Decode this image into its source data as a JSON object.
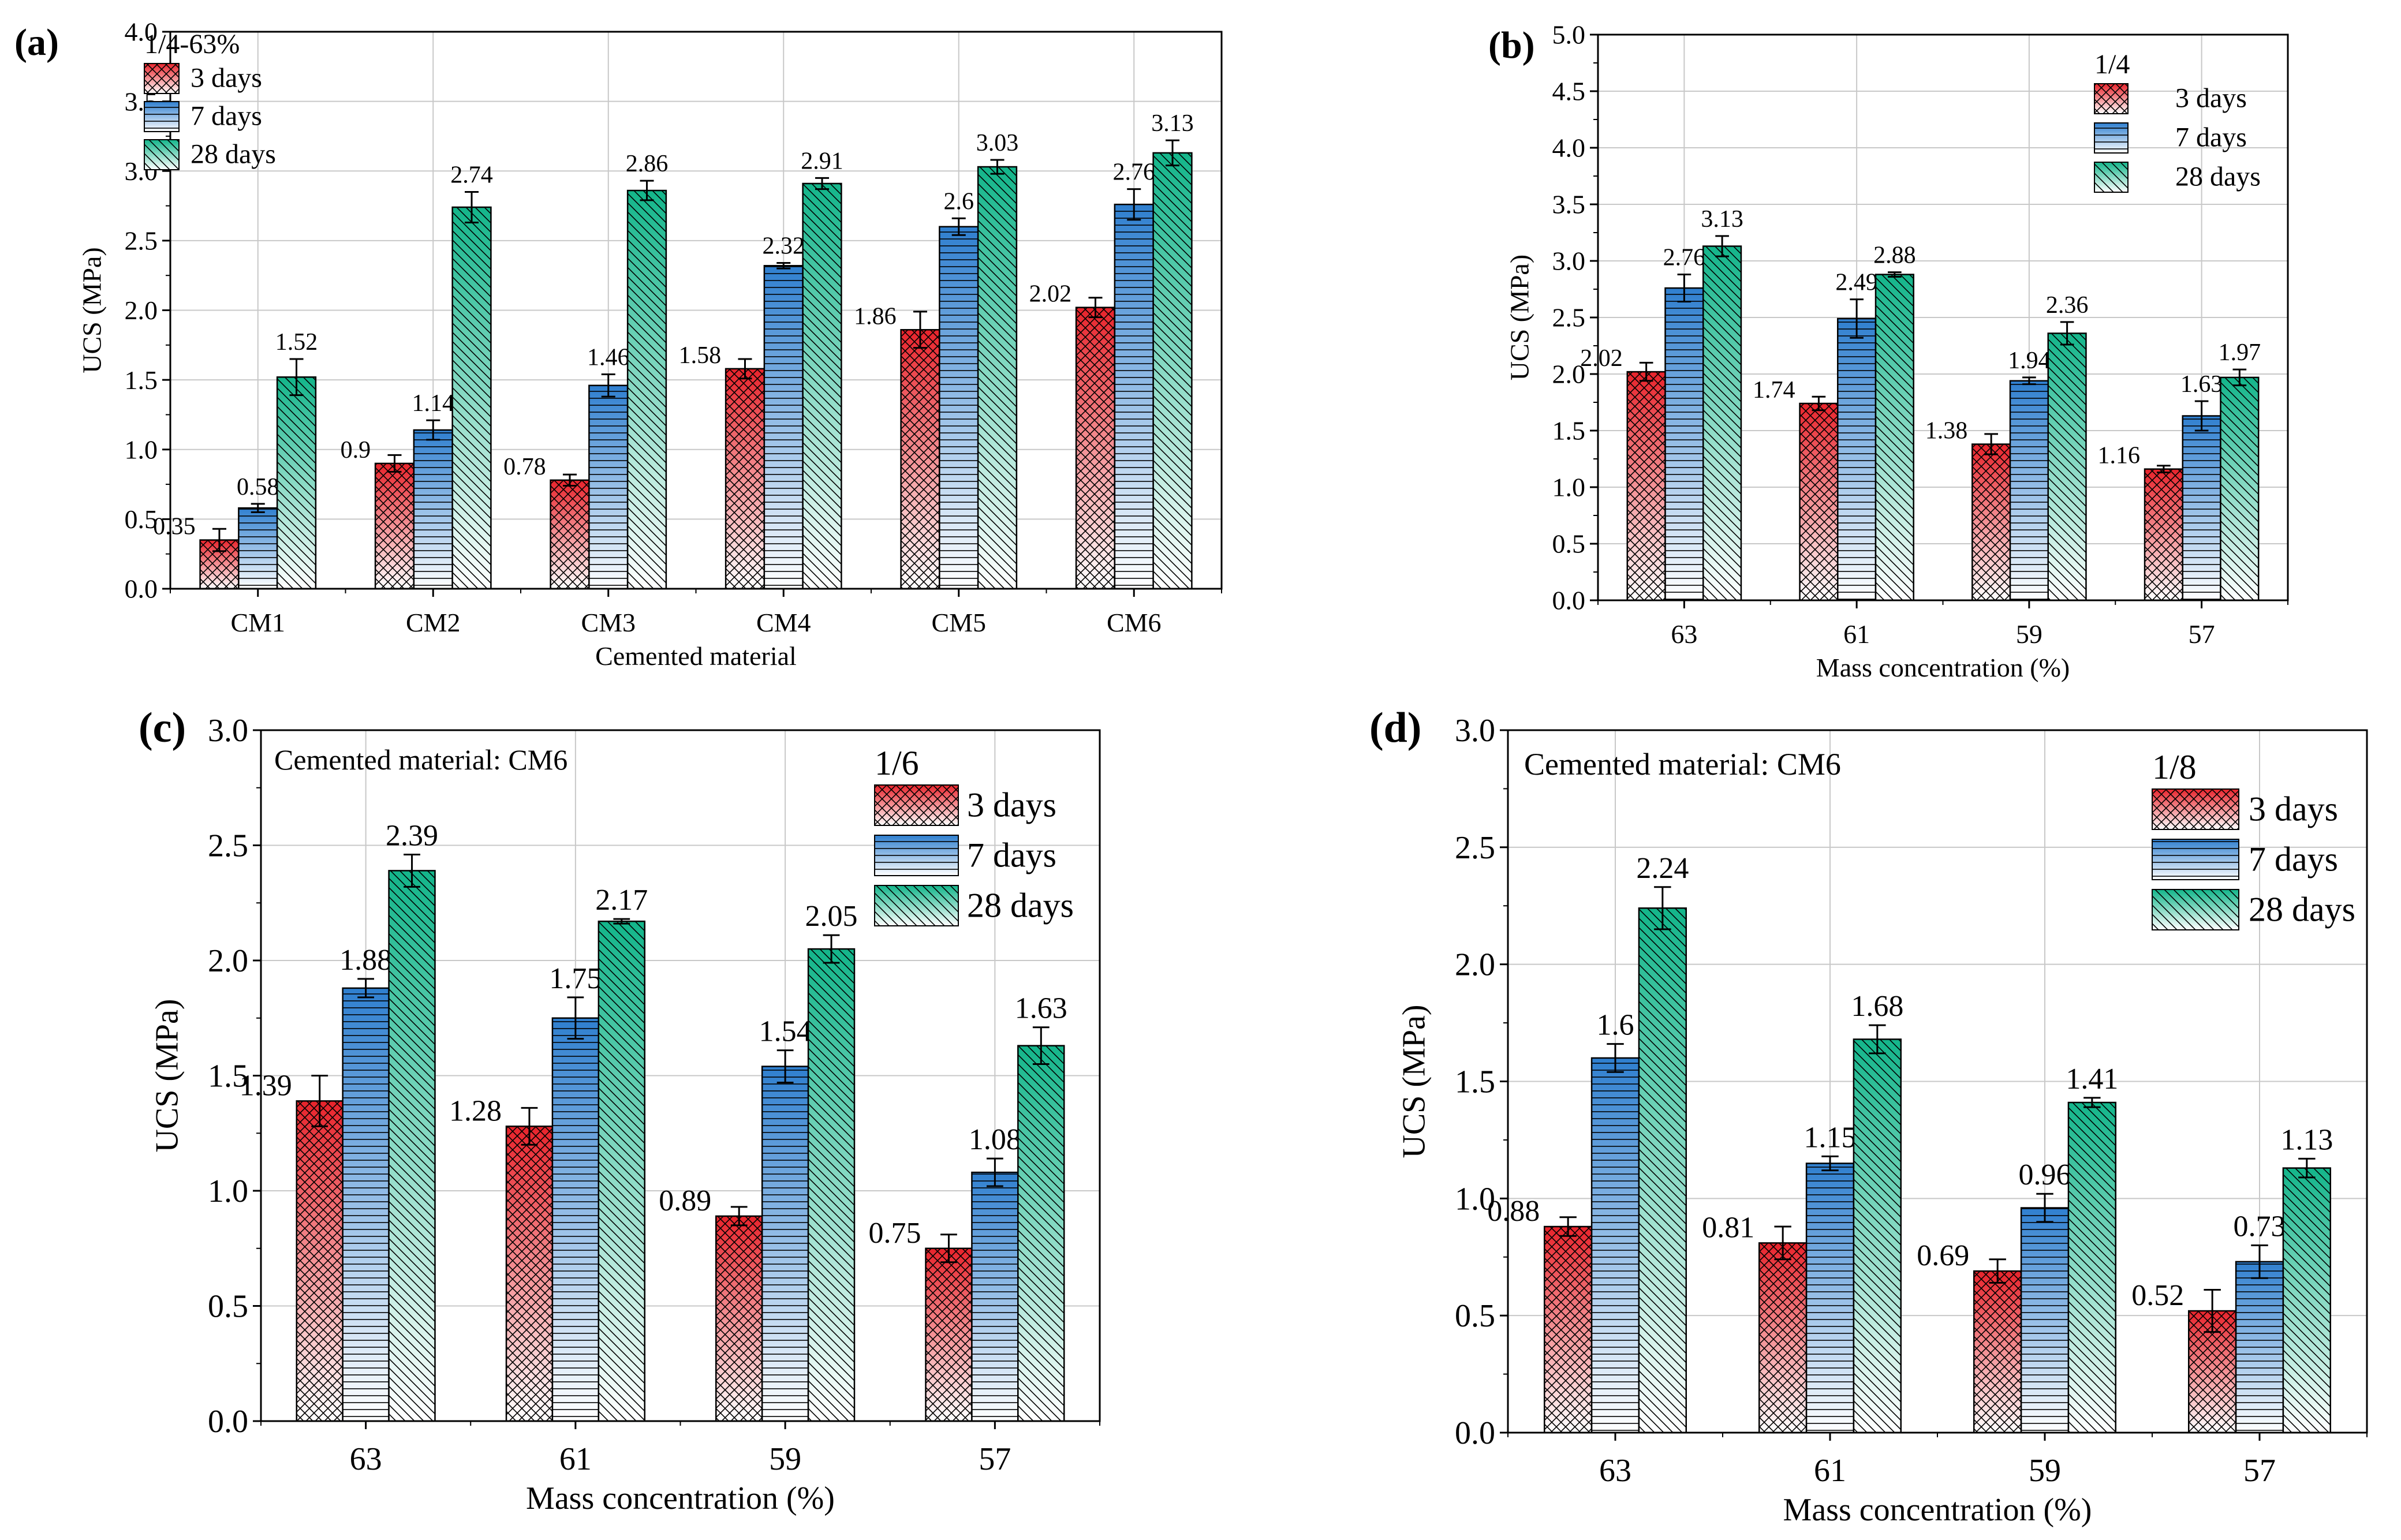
{
  "series_colors": {
    "3 days": "#e8232b",
    "7 days": "#2f7fcf",
    "28 days": "#13b58a"
  },
  "chart_data": [
    {
      "type": "bar",
      "panel_label": "(a)",
      "title": "",
      "xlabel": "Cemented material",
      "ylabel": "UCS (MPa)",
      "ylim": [
        0,
        4.0
      ],
      "yticks": [
        "0.0",
        "0.5",
        "1.0",
        "1.5",
        "2.0",
        "2.5",
        "3.0",
        "3.5",
        "4.0"
      ],
      "grid": true,
      "legend_title": "1/4-63%",
      "legend_position": "top-left",
      "categories": [
        "CM1",
        "CM2",
        "CM3",
        "CM4",
        "CM5",
        "CM6"
      ],
      "series": [
        {
          "name": "3 days",
          "values": [
            0.35,
            0.9,
            0.78,
            1.58,
            1.86,
            2.02
          ],
          "labels": [
            "0.35",
            "0.9",
            "0.78",
            "1.58",
            "1.86",
            "2.02"
          ],
          "errors": [
            0.08,
            0.06,
            0.04,
            0.07,
            0.13,
            0.07
          ]
        },
        {
          "name": "7 days",
          "values": [
            0.58,
            1.14,
            1.46,
            2.32,
            2.6,
            2.76
          ],
          "labels": [
            "0.58",
            "1.14",
            "1.46",
            "2.32",
            "2.6",
            "2.76"
          ],
          "errors": [
            0.03,
            0.07,
            0.08,
            0.02,
            0.06,
            0.11
          ]
        },
        {
          "name": "28 days",
          "values": [
            1.52,
            2.74,
            2.86,
            2.91,
            3.03,
            3.13
          ],
          "labels": [
            "1.52",
            "2.74",
            "2.86",
            "2.91",
            "3.03",
            "3.13"
          ],
          "errors": [
            0.13,
            0.11,
            0.07,
            0.04,
            0.05,
            0.09
          ]
        }
      ]
    },
    {
      "type": "bar",
      "panel_label": "(b)",
      "title": "",
      "xlabel": "Mass concentration (%)",
      "ylabel": "UCS (MPa)",
      "ylim": [
        0,
        5.0
      ],
      "yticks": [
        "0.0",
        "0.5",
        "1.0",
        "1.5",
        "2.0",
        "2.5",
        "3.0",
        "3.5",
        "4.0",
        "4.5",
        "5.0"
      ],
      "grid": true,
      "legend_title": "1/4",
      "legend_position": "top-right",
      "categories": [
        "63",
        "61",
        "59",
        "57"
      ],
      "series": [
        {
          "name": "3 days",
          "values": [
            2.02,
            1.74,
            1.38,
            1.16
          ],
          "labels": [
            "2.02",
            "1.74",
            "1.38",
            "1.16"
          ],
          "errors": [
            0.08,
            0.06,
            0.09,
            0.03
          ]
        },
        {
          "name": "7 days",
          "values": [
            2.76,
            2.49,
            1.94,
            1.63
          ],
          "labels": [
            "2.76",
            "2.49",
            "1.94",
            "1.63"
          ],
          "errors": [
            0.12,
            0.17,
            0.03,
            0.13
          ]
        },
        {
          "name": "28 days",
          "values": [
            3.13,
            2.88,
            2.36,
            1.97
          ],
          "labels": [
            "3.13",
            "2.88",
            "2.36",
            "1.97"
          ],
          "errors": [
            0.09,
            0.02,
            0.1,
            0.07
          ]
        }
      ]
    },
    {
      "type": "bar",
      "panel_label": "(c)",
      "title": "",
      "annotation": "Cemented material: CM6",
      "xlabel": "Mass concentration (%)",
      "ylabel": "UCS (MPa)",
      "ylim": [
        0,
        3.0
      ],
      "yticks": [
        "0.0",
        "0.5",
        "1.0",
        "1.5",
        "2.0",
        "2.5",
        "3.0"
      ],
      "grid": true,
      "legend_title": "1/6",
      "legend_position": "top-right",
      "categories": [
        "63",
        "61",
        "59",
        "57"
      ],
      "series": [
        {
          "name": "3 days",
          "values": [
            1.39,
            1.28,
            0.89,
            0.75
          ],
          "labels": [
            "1.39",
            "1.28",
            "0.89",
            "0.75"
          ],
          "errors": [
            0.11,
            0.08,
            0.04,
            0.06
          ]
        },
        {
          "name": "7 days",
          "values": [
            1.88,
            1.75,
            1.54,
            1.08
          ],
          "labels": [
            "1.88",
            "1.75",
            "1.54",
            "1.08"
          ],
          "errors": [
            0.04,
            0.09,
            0.07,
            0.06
          ]
        },
        {
          "name": "28 days",
          "values": [
            2.39,
            2.17,
            2.05,
            1.63
          ],
          "labels": [
            "2.39",
            "2.17",
            "2.05",
            "1.63"
          ],
          "errors": [
            0.07,
            0.01,
            0.06,
            0.08
          ]
        }
      ]
    },
    {
      "type": "bar",
      "panel_label": "(d)",
      "title": "",
      "annotation": "Cemented material: CM6",
      "xlabel": "Mass concentration (%)",
      "ylabel": "UCS (MPa)",
      "ylim": [
        0,
        3.0
      ],
      "yticks": [
        "0.0",
        "0.5",
        "1.0",
        "1.5",
        "2.0",
        "2.5",
        "3.0"
      ],
      "grid": true,
      "legend_title": "1/8",
      "legend_position": "top-right",
      "categories": [
        "63",
        "61",
        "59",
        "57"
      ],
      "series": [
        {
          "name": "3 days",
          "values": [
            0.88,
            0.81,
            0.69,
            0.52
          ],
          "labels": [
            "0.88",
            "0.81",
            "0.69",
            "0.52"
          ],
          "errors": [
            0.04,
            0.07,
            0.05,
            0.09
          ]
        },
        {
          "name": "7 days",
          "values": [
            1.6,
            1.15,
            0.96,
            0.73
          ],
          "labels": [
            "1.6",
            "1.15",
            "0.96",
            "0.73"
          ],
          "errors": [
            0.06,
            0.03,
            0.06,
            0.07
          ]
        },
        {
          "name": "28 days",
          "values": [
            2.24,
            1.68,
            1.41,
            1.13
          ],
          "labels": [
            "2.24",
            "1.68",
            "1.41",
            "1.13"
          ],
          "errors": [
            0.09,
            0.06,
            0.02,
            0.04
          ]
        }
      ]
    }
  ]
}
